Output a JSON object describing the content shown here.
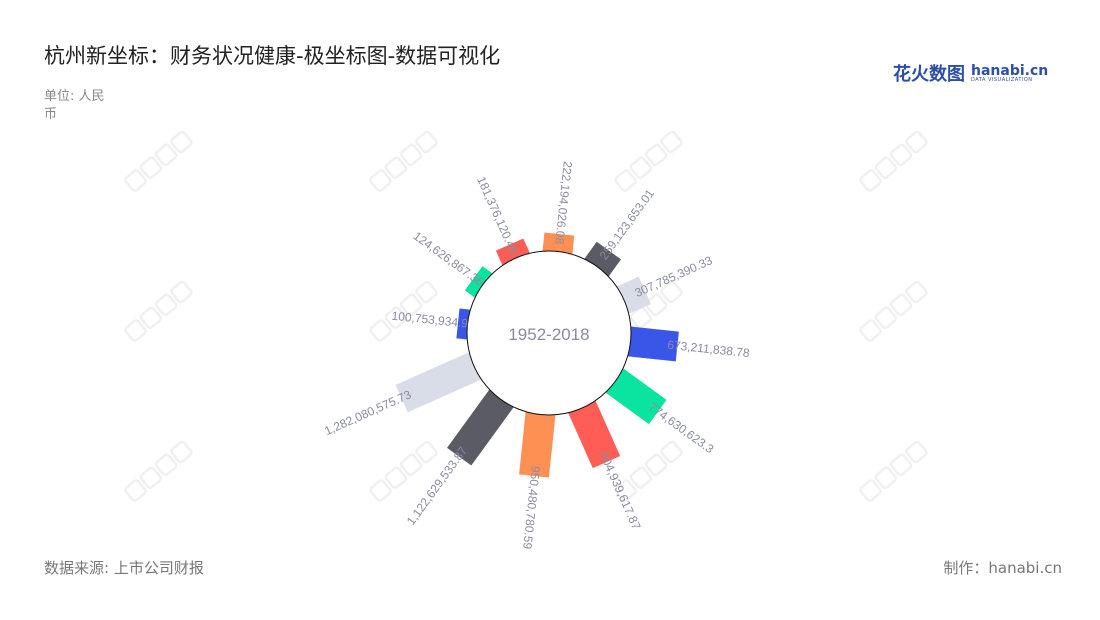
{
  "header": {
    "title": "杭州新坐标：财务状况健康-极坐标图-数据可视化",
    "unit": "单位: 人民币"
  },
  "footer": {
    "source": "数据来源: 上市公司财报",
    "credit": "制作：hanabi.cn"
  },
  "logo": {
    "cn": "花火数图",
    "en": "hanabi.cn",
    "tagline": "DATA VISUALIZATION"
  },
  "watermark": "花火数图 hanabi.cn",
  "chart_data": {
    "type": "bar",
    "subtype": "polar-radial-bar",
    "center_label": "1952-2018",
    "values": [
      100753934.9,
      124626867.36,
      181376120.48,
      222194026.08,
      259123653.01,
      307785390.33,
      673211838.78,
      774630623.3,
      904939617.87,
      950480780.59,
      1122629533.87,
      1282080575.73
    ],
    "labels": [
      "100,753,934.9",
      "124,626,867.36",
      "181,376,120.48",
      "222,194,026.08",
      "259,123,653.01",
      "307,785,390.33",
      "673,211,838.78",
      "774,630,623.3",
      "904,939,617.87",
      "950,480,780.59",
      "1,122,629,533.87",
      "1,282,080,575.73"
    ],
    "colors": [
      "#3a56e8",
      "#0be3a0",
      "#ff5d55",
      "#ff9054",
      "#5a5b65",
      "#d9dde8"
    ],
    "label_color": "#8a8ba0",
    "grid": false,
    "legend": "none"
  }
}
